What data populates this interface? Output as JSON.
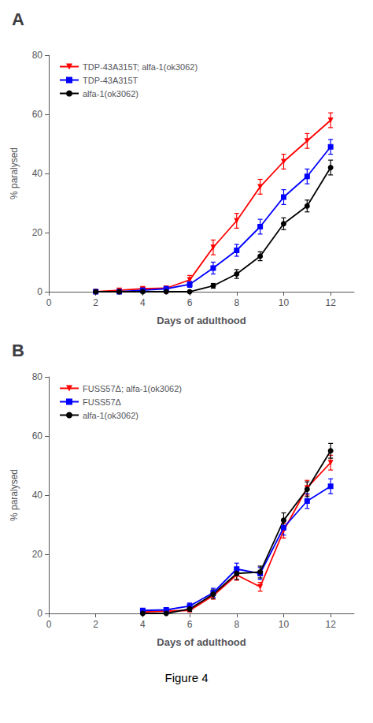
{
  "chart_data": [
    {
      "type": "line",
      "title": "A",
      "xlabel": "Days of adulthood",
      "ylabel": "% paralysed",
      "x": [
        2,
        3,
        4,
        5,
        6,
        7,
        8,
        9,
        10,
        11,
        12
      ],
      "series": [
        {
          "name": "TDP-43A315T; alfa-1(ok3062)",
          "color": "#FF0000",
          "marker": "triangle_down",
          "values": [
            0.0,
            0.5,
            1.0,
            1.2,
            4.0,
            15.0,
            24.0,
            35.5,
            44.0,
            51.0,
            58.0
          ],
          "errors": [
            0.0,
            0.3,
            0.5,
            0.5,
            1.5,
            2.5,
            2.5,
            2.5,
            2.5,
            2.5,
            2.5
          ]
        },
        {
          "name": "TDP-43A315T",
          "color": "#0000FF",
          "marker": "square",
          "values": [
            0.0,
            0.0,
            0.5,
            1.0,
            2.5,
            8.0,
            14.0,
            22.0,
            32.0,
            39.0,
            49.0
          ],
          "errors": [
            0.0,
            0.3,
            0.3,
            0.5,
            1.0,
            2.0,
            2.0,
            2.5,
            2.5,
            2.5,
            2.5
          ]
        },
        {
          "name": "alfa-1(ok3062)",
          "color": "#000000",
          "marker": "circle",
          "values": [
            0.0,
            0.0,
            0.0,
            0.0,
            0.0,
            2.0,
            6.0,
            12.0,
            23.0,
            29.0,
            42.0
          ],
          "errors": [
            0.0,
            0.0,
            0.0,
            0.0,
            0.0,
            0.8,
            1.5,
            1.5,
            2.0,
            2.0,
            2.5
          ]
        }
      ],
      "xlim": [
        0,
        13
      ],
      "xticks": [
        0,
        2,
        4,
        6,
        8,
        10,
        12
      ],
      "ylim": [
        0,
        80
      ],
      "yticks": [
        0,
        20,
        40,
        60,
        80
      ],
      "grid": false,
      "legend": "upper left"
    },
    {
      "type": "line",
      "title": "B",
      "xlabel": "Days of adulthood",
      "ylabel": "% paralysed",
      "x": [
        4,
        5,
        6,
        7,
        8,
        9,
        10,
        11,
        12
      ],
      "series": [
        {
          "name": "FUSS57Δ; alfa-1(ok3062)",
          "color": "#FF0000",
          "marker": "triangle_down",
          "values": [
            0.5,
            0.8,
            1.0,
            6.0,
            13.0,
            9.0,
            28.0,
            42.5,
            51.0
          ],
          "errors": [
            0.3,
            0.3,
            0.5,
            1.2,
            1.8,
            1.5,
            2.5,
            2.5,
            2.5
          ]
        },
        {
          "name": "FUSS57Δ",
          "color": "#0000FF",
          "marker": "square",
          "values": [
            1.0,
            1.2,
            2.5,
            7.0,
            15.0,
            13.5,
            29.0,
            38.0,
            43.0
          ],
          "errors": [
            0.5,
            0.5,
            1.0,
            1.5,
            2.0,
            2.0,
            2.5,
            2.5,
            2.5
          ]
        },
        {
          "name": "alfa-1(ok3062)",
          "color": "#000000",
          "marker": "circle",
          "values": [
            0.0,
            0.0,
            1.5,
            6.5,
            13.5,
            14.0,
            31.5,
            42.0,
            55.0
          ],
          "errors": [
            0.0,
            0.0,
            0.8,
            1.5,
            2.0,
            2.0,
            2.5,
            2.5,
            2.5
          ]
        }
      ],
      "xlim": [
        0,
        13
      ],
      "xticks": [
        0,
        2,
        4,
        6,
        8,
        10,
        12
      ],
      "ylim": [
        0,
        80
      ],
      "yticks": [
        0,
        20,
        40,
        60,
        80
      ],
      "grid": false,
      "legend": "upper left",
      "annotations": [
        "Figure 4"
      ]
    }
  ]
}
